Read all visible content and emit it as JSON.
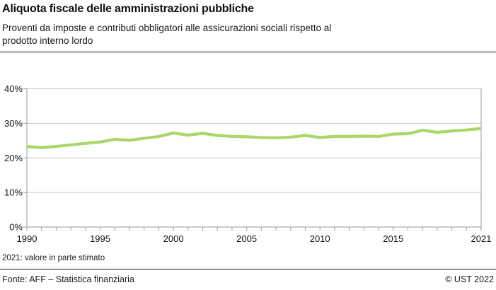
{
  "header": {
    "title": "Aliquota fiscale delle amministrazioni pubbliche",
    "subtitle_lines": [
      "Proventi da imposte e contributi obbligatori alle assicurazioni sociali rispetto al",
      "prodotto interno lordo"
    ]
  },
  "note": "2021: valore in parte stimato",
  "footer": {
    "source": "Fonte: AFF – Statistica finanziaria",
    "copyright": "© UST 2022"
  },
  "colors": {
    "line": "#a9d768",
    "grid": "#c8c8c8",
    "axis": "#9a9a9a",
    "text": "#111111"
  },
  "chart_data": {
    "type": "line",
    "title": "Aliquota fiscale delle amministrazioni pubbliche",
    "subtitle": "Proventi da imposte e contributi obbligatori alle assicurazioni sociali rispetto al prodotto interno lordo",
    "xlabel": "",
    "ylabel": "",
    "xlim": [
      1990,
      2021
    ],
    "ylim": [
      0,
      40
    ],
    "grid": true,
    "legend": "none",
    "yticks": [
      0,
      10,
      20,
      30,
      40
    ],
    "ytick_suffix": "%",
    "xtick_labels": [
      1990,
      1995,
      2000,
      2005,
      2010,
      2015,
      2021
    ],
    "x": [
      1990,
      1991,
      1992,
      1993,
      1994,
      1995,
      1996,
      1997,
      1998,
      1999,
      2000,
      2001,
      2002,
      2003,
      2004,
      2005,
      2006,
      2007,
      2008,
      2009,
      2010,
      2011,
      2012,
      2013,
      2014,
      2015,
      2016,
      2017,
      2018,
      2019,
      2020,
      2021
    ],
    "series": [
      {
        "name": "Aliquota fiscale",
        "values": [
          23.3,
          23.0,
          23.3,
          23.8,
          24.2,
          24.6,
          25.4,
          25.1,
          25.7,
          26.2,
          27.2,
          26.6,
          27.1,
          26.5,
          26.2,
          26.1,
          25.9,
          25.8,
          26.0,
          26.5,
          25.9,
          26.2,
          26.2,
          26.3,
          26.2,
          26.9,
          27.0,
          28.0,
          27.4,
          27.8,
          28.1,
          28.5
        ]
      }
    ]
  }
}
